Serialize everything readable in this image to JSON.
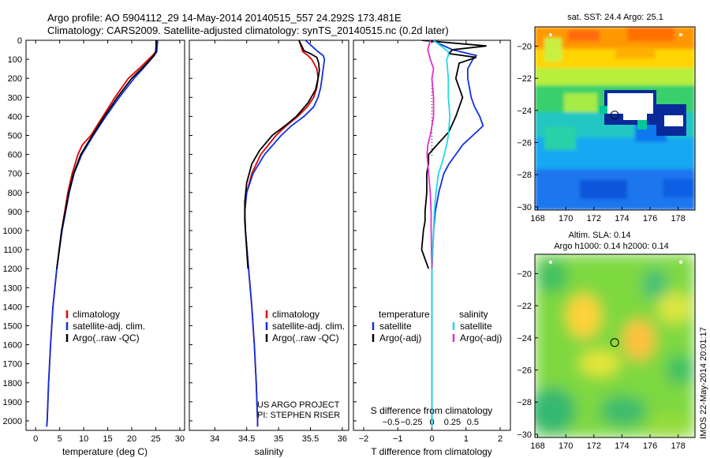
{
  "header": {
    "line1": "Argo profile: AO 5904112_29 14-May-2014 20140515_557 24.292S 173.481E",
    "line2": "Climatology: CARS2009. Satellite-adjusted climatology: synTS_20140515.nc (0.2d later)"
  },
  "stamp": "IMOS 22-May-2014 20:01:17",
  "credit": {
    "line1": "US ARGO PROJECT",
    "line2": "PI: STEPHEN RISER"
  },
  "colors": {
    "climatology": "#e00000",
    "satellite": "#1030e0",
    "argo": "#000000",
    "sat_salinity": "#20d8e8",
    "argo_salinity": "#e030d0"
  },
  "chart_data": [
    {
      "type": "line",
      "title": "",
      "xlabel": "temperature (deg C)",
      "ylabel": "",
      "xlim": [
        -2,
        31
      ],
      "ylim": [
        2050,
        0
      ],
      "xticks": [
        0,
        5,
        10,
        15,
        20,
        25,
        30
      ],
      "yticks": [
        0,
        100,
        200,
        300,
        400,
        500,
        600,
        700,
        800,
        900,
        1000,
        1100,
        1200,
        1300,
        1400,
        1500,
        1600,
        1700,
        1800,
        1900,
        2000
      ],
      "legend": [
        "climatology",
        "satellite-adj. clim.",
        "Argo(..raw -QC)"
      ],
      "series": [
        {
          "name": "climatology",
          "color": "#e00000",
          "depth": [
            0,
            60,
            80,
            100,
            150,
            200,
            300,
            400,
            500,
            550,
            600,
            700,
            800,
            1000,
            1200,
            1400,
            1600,
            1800,
            2000,
            2030
          ],
          "values": [
            25.2,
            25.0,
            24.3,
            23.5,
            21.5,
            19.3,
            16.5,
            14.0,
            11.5,
            9.7,
            8.8,
            7.6,
            6.7,
            5.4,
            4.4,
            3.6,
            3.1,
            2.7,
            2.4,
            2.3
          ]
        },
        {
          "name": "satellite-adj. clim.",
          "color": "#1030e0",
          "depth": [
            0,
            60,
            80,
            100,
            150,
            200,
            300,
            400,
            500,
            600,
            700,
            800,
            1000,
            1200,
            1400,
            1600,
            1800,
            2000,
            2030
          ],
          "values": [
            25.4,
            25.2,
            24.7,
            24.0,
            22.3,
            20.5,
            17.4,
            14.6,
            12.0,
            9.6,
            8.0,
            7.0,
            5.5,
            4.4,
            3.6,
            3.1,
            2.7,
            2.4,
            2.3
          ]
        },
        {
          "name": "Argo(..raw -QC)",
          "color": "#000000",
          "depth": [
            0,
            60,
            80,
            100,
            150,
            200,
            300,
            400,
            500,
            600,
            700,
            800,
            1000,
            1200
          ],
          "values": [
            25.1,
            25.0,
            24.6,
            23.9,
            22.0,
            20.0,
            17.0,
            14.3,
            11.8,
            9.4,
            7.9,
            6.9,
            5.4,
            4.4
          ]
        }
      ]
    },
    {
      "type": "line",
      "title": "",
      "xlabel": "salinity",
      "ylabel": "",
      "xlim": [
        33.6,
        36.1
      ],
      "ylim": [
        2050,
        0
      ],
      "xticks": [
        34,
        34.5,
        35,
        35.5,
        36
      ],
      "yticks": [],
      "legend": [
        "climatology",
        "satellite-adj. clim.",
        "Argo(..raw -QC)"
      ],
      "series": [
        {
          "name": "climatology",
          "color": "#e00000",
          "depth": [
            0,
            60,
            80,
            100,
            150,
            200,
            250,
            300,
            350,
            400,
            450,
            500,
            600,
            700,
            800,
            900,
            1000,
            1200,
            1400,
            1600,
            1800,
            2000,
            2030
          ],
          "values": [
            35.32,
            35.38,
            35.46,
            35.52,
            35.6,
            35.62,
            35.6,
            35.55,
            35.45,
            35.3,
            35.12,
            34.96,
            34.72,
            34.58,
            34.5,
            34.47,
            34.48,
            34.53,
            34.58,
            34.62,
            34.65,
            34.67,
            34.67
          ]
        },
        {
          "name": "satellite-adj. clim.",
          "color": "#1030e0",
          "depth": [
            0,
            60,
            80,
            100,
            150,
            200,
            250,
            300,
            350,
            400,
            450,
            500,
            600,
            700,
            800,
            900,
            1000,
            1200,
            1400,
            1600,
            1800,
            2000,
            2030
          ],
          "values": [
            35.42,
            35.62,
            35.7,
            35.72,
            35.7,
            35.68,
            35.66,
            35.62,
            35.55,
            35.4,
            35.2,
            35.04,
            34.78,
            34.6,
            34.5,
            34.47,
            34.48,
            34.53,
            34.58,
            34.62,
            34.65,
            34.67,
            34.67
          ]
        },
        {
          "name": "Argo(..raw -QC)",
          "color": "#000000",
          "depth": [
            0,
            55,
            70,
            90,
            120,
            160,
            200,
            260,
            330,
            400,
            450,
            500,
            580,
            650,
            750,
            850,
            950,
            1050,
            1150,
            1200
          ],
          "values": [
            35.32,
            35.4,
            35.5,
            35.6,
            35.63,
            35.64,
            35.62,
            35.58,
            35.46,
            35.28,
            35.1,
            34.9,
            34.7,
            34.58,
            34.5,
            34.47,
            34.47,
            34.49,
            34.51,
            34.52
          ]
        }
      ]
    },
    {
      "type": "line",
      "title": "",
      "xlabel": "T difference from climatology",
      "xlabel2": "S difference from climatology",
      "ylabel": "",
      "xlim": [
        -2.3,
        2.3
      ],
      "ylim": [
        2050,
        0
      ],
      "xticks": [
        -2,
        -1,
        0,
        1,
        2
      ],
      "xticks_top": [
        -0.5,
        -0.25,
        0,
        0.25,
        0.5
      ],
      "xtick_labels_top": [
        "−0.5",
        "−0.25",
        "0",
        "0.25",
        "0.5"
      ],
      "yticks": [],
      "legend_titles": [
        "temperature",
        "salinity"
      ],
      "legend": [
        "satellite",
        "Argo(-adj)",
        "satellite",
        "Argo(-adj)"
      ],
      "series": [
        {
          "name": "satellite",
          "group": "temperature",
          "color": "#1030e0",
          "depth": [
            0,
            50,
            80,
            100,
            150,
            200,
            250,
            300,
            350,
            400,
            450,
            500,
            550,
            600,
            650,
            700,
            800,
            900,
            1000,
            1200,
            1400,
            1600,
            1800,
            2000,
            2030
          ],
          "values": [
            0.0,
            0.6,
            1.3,
            1.2,
            1.05,
            1.05,
            1.1,
            1.15,
            1.25,
            1.4,
            1.5,
            1.2,
            0.9,
            0.7,
            0.5,
            0.35,
            0.2,
            0.1,
            0.05,
            0.0,
            0.0,
            0.0,
            0.0,
            0.0,
            0.0
          ]
        },
        {
          "name": "Argo(-adj)",
          "group": "temperature",
          "color": "#000000",
          "depth": [
            0,
            30,
            50,
            70,
            90,
            120,
            200,
            300,
            400,
            480,
            520,
            560,
            600,
            650,
            700,
            800,
            900,
            950,
            1000,
            1100,
            1150,
            1200
          ],
          "values": [
            -0.3,
            1.6,
            0.6,
            0.5,
            1.3,
            0.8,
            0.7,
            0.9,
            0.7,
            0.5,
            0.3,
            0.1,
            -0.1,
            -0.1,
            -0.15,
            -0.15,
            -0.2,
            -0.2,
            -0.25,
            -0.3,
            -0.2,
            -0.1
          ]
        },
        {
          "name": "satellite",
          "group": "salinity",
          "color": "#20d8e8",
          "depth": [
            0,
            60,
            80,
            100,
            200,
            300,
            400,
            500,
            550,
            600,
            650,
            700,
            800,
            900,
            1000,
            1200,
            1400,
            1600,
            1800,
            2000,
            2030
          ],
          "values": [
            0.02,
            0.2,
            0.2,
            0.18,
            0.2,
            0.2,
            0.22,
            0.2,
            0.18,
            0.15,
            0.12,
            0.08,
            0.05,
            0.03,
            0.02,
            0.0,
            0.0,
            0.0,
            0.0,
            0.0,
            0.0
          ]
        },
        {
          "name": "Argo(-adj)",
          "group": "salinity",
          "color": "#e030d0",
          "depth": [
            0,
            50,
            100,
            150,
            200,
            300,
            400,
            500,
            550,
            600,
            650,
            700,
            800,
            900,
            1000,
            1200
          ],
          "values": [
            -0.02,
            -0.05,
            -0.02,
            0.02,
            0.0,
            0.02,
            0.02,
            -0.02,
            -0.05,
            -0.06,
            -0.05,
            -0.04,
            -0.02,
            -0.01,
            -0.01,
            0.0
          ]
        }
      ]
    },
    {
      "type": "heatmap",
      "title": "sat. SST: 24.4 Argo: 25.1",
      "xlim": [
        167.8,
        179.2
      ],
      "ylim": [
        -30.2,
        -18.8
      ],
      "xticks": [
        168,
        170,
        172,
        174,
        176,
        178
      ],
      "yticks": [
        -20,
        -22,
        -24,
        -26,
        -28,
        -30
      ],
      "ytick_labels": [
        "−20",
        "−22",
        "−24",
        "−26",
        "−28",
        "−30"
      ],
      "marker": {
        "lon": 173.481,
        "lat": -24.292
      }
    },
    {
      "type": "heatmap",
      "title": "Altim. SLA: 0.14",
      "subtitle": "Argo h1000: 0.14 h2000: 0.14",
      "xlim": [
        167.8,
        179.2
      ],
      "ylim": [
        -30.2,
        -18.8
      ],
      "xticks": [
        168,
        170,
        172,
        174,
        176,
        178
      ],
      "yticks": [
        -20,
        -22,
        -24,
        -26,
        -28,
        -30
      ],
      "ytick_labels": [
        "−20",
        "−22",
        "−24",
        "−26",
        "−28",
        "−30"
      ],
      "marker": {
        "lon": 173.481,
        "lat": -24.292
      }
    }
  ]
}
